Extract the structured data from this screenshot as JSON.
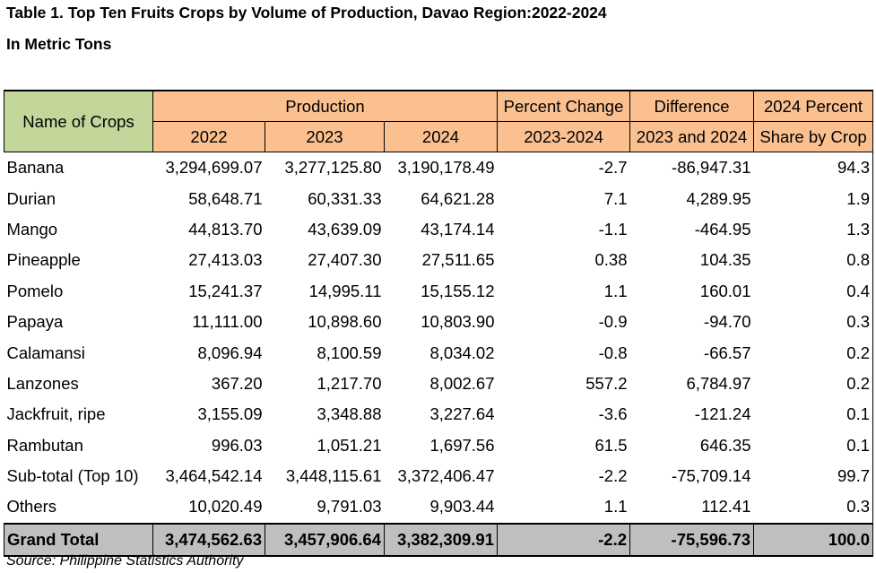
{
  "title": "Table 1. Top Ten Fruits Crops by Volume of Production, Davao Region:2022-2024",
  "subtitle": "In Metric Tons",
  "headers": {
    "name_of_crops": "Name of Crops",
    "production": "Production",
    "year_2022": "2022",
    "year_2023": "2023",
    "year_2024": "2024",
    "percent_change": "Percent Change",
    "percent_change_period": "2023-2024",
    "difference": "Difference",
    "difference_period": "2023 and 2024",
    "share": "2024 Percent",
    "share_sub": "Share by Crop"
  },
  "rows": [
    {
      "name": "Banana",
      "y2022": "3,294,699.07",
      "y2023": "3,277,125.80",
      "y2024": "3,190,178.49",
      "pct": "-2.7",
      "diff": "-86,947.31",
      "share": "94.3"
    },
    {
      "name": "Durian",
      "y2022": "58,648.71",
      "y2023": "60,331.33",
      "y2024": "64,621.28",
      "pct": "7.1",
      "diff": "4,289.95",
      "share": "1.9"
    },
    {
      "name": "Mango",
      "y2022": "44,813.70",
      "y2023": "43,639.09",
      "y2024": "43,174.14",
      "pct": "-1.1",
      "diff": "-464.95",
      "share": "1.3"
    },
    {
      "name": "Pineapple",
      "y2022": "27,413.03",
      "y2023": "27,407.30",
      "y2024": "27,511.65",
      "pct": "0.38",
      "diff": "104.35",
      "share": "0.8"
    },
    {
      "name": "Pomelo",
      "y2022": "15,241.37",
      "y2023": "14,995.11",
      "y2024": "15,155.12",
      "pct": "1.1",
      "diff": "160.01",
      "share": "0.4"
    },
    {
      "name": "Papaya",
      "y2022": "11,111.00",
      "y2023": "10,898.60",
      "y2024": "10,803.90",
      "pct": "-0.9",
      "diff": "-94.70",
      "share": "0.3"
    },
    {
      "name": "Calamansi",
      "y2022": "8,096.94",
      "y2023": "8,100.59",
      "y2024": "8,034.02",
      "pct": "-0.8",
      "diff": "-66.57",
      "share": "0.2"
    },
    {
      "name": "Lanzones",
      "y2022": "367.20",
      "y2023": "1,217.70",
      "y2024": "8,002.67",
      "pct": "557.2",
      "diff": "6,784.97",
      "share": "0.2"
    },
    {
      "name": "Jackfruit, ripe",
      "y2022": "3,155.09",
      "y2023": "3,348.88",
      "y2024": "3,227.64",
      "pct": "-3.6",
      "diff": "-121.24",
      "share": "0.1"
    },
    {
      "name": "Rambutan",
      "y2022": "996.03",
      "y2023": "1,051.21",
      "y2024": "1,697.56",
      "pct": "61.5",
      "diff": "646.35",
      "share": "0.1"
    },
    {
      "name": "Sub-total (Top 10)",
      "y2022": "3,464,542.14",
      "y2023": "3,448,115.61",
      "y2024": "3,372,406.47",
      "pct": "-2.2",
      "diff": "-75,709.14",
      "share": "99.7"
    },
    {
      "name": "Others",
      "y2022": "10,020.49",
      "y2023": "9,791.03",
      "y2024": "9,903.44",
      "pct": "1.1",
      "diff": "112.41",
      "share": "0.3"
    }
  ],
  "total": {
    "name": "Grand Total",
    "y2022": "3,474,562.63",
    "y2023": "3,457,906.64",
    "y2024": "3,382,309.91",
    "pct": "-2.2",
    "diff": "-75,596.73",
    "share": "100.0"
  },
  "source": "Source: Philippine Statistics Authority",
  "colors": {
    "crop_header_bg": "#c4d79b",
    "header_bg": "#fac090",
    "total_bg": "#bfbfbf"
  }
}
